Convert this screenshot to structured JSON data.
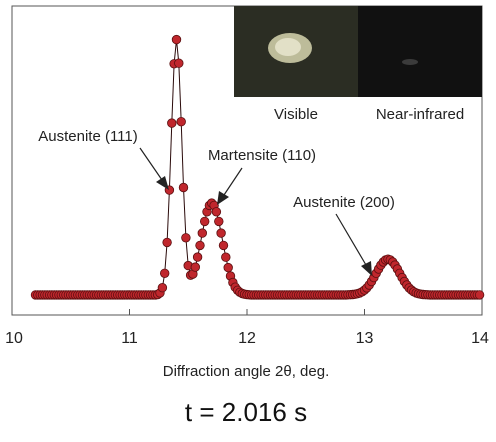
{
  "chart_data": {
    "type": "scatter",
    "title": "",
    "xlabel": "Diffraction angle 2θ, deg.",
    "ylabel": "",
    "xlim": [
      10,
      14
    ],
    "x_ticks": [
      "10",
      "11",
      "12",
      "13",
      "14"
    ],
    "ylim": [
      0,
      100
    ],
    "y_ticks_shown": false,
    "grid": false,
    "marker_color": "#c0272d",
    "marker_edge_color": "#5a0f10",
    "line_color": "#2a0a0a",
    "peaks": [
      {
        "label": "Austenite (111)",
        "center": 11.4,
        "height": 100
      },
      {
        "label": "Martensite (110)",
        "center": 11.7,
        "height": 36
      },
      {
        "label": "Austenite (200)",
        "center": 13.2,
        "height": 14
      }
    ],
    "annotations": [
      {
        "text": "Austenite (111)",
        "points_to_x": 11.33,
        "points_to_y": 44
      },
      {
        "text": "Martensite (110)",
        "points_to_x": 11.66,
        "points_to_y": 36
      },
      {
        "text": "Austenite (200)",
        "points_to_x": 13.1,
        "points_to_y": 10
      }
    ],
    "time_label": "t = 2.016 s"
  },
  "inset": {
    "visible_label": "Visible",
    "near_infrared_label": "Near-infrared"
  }
}
